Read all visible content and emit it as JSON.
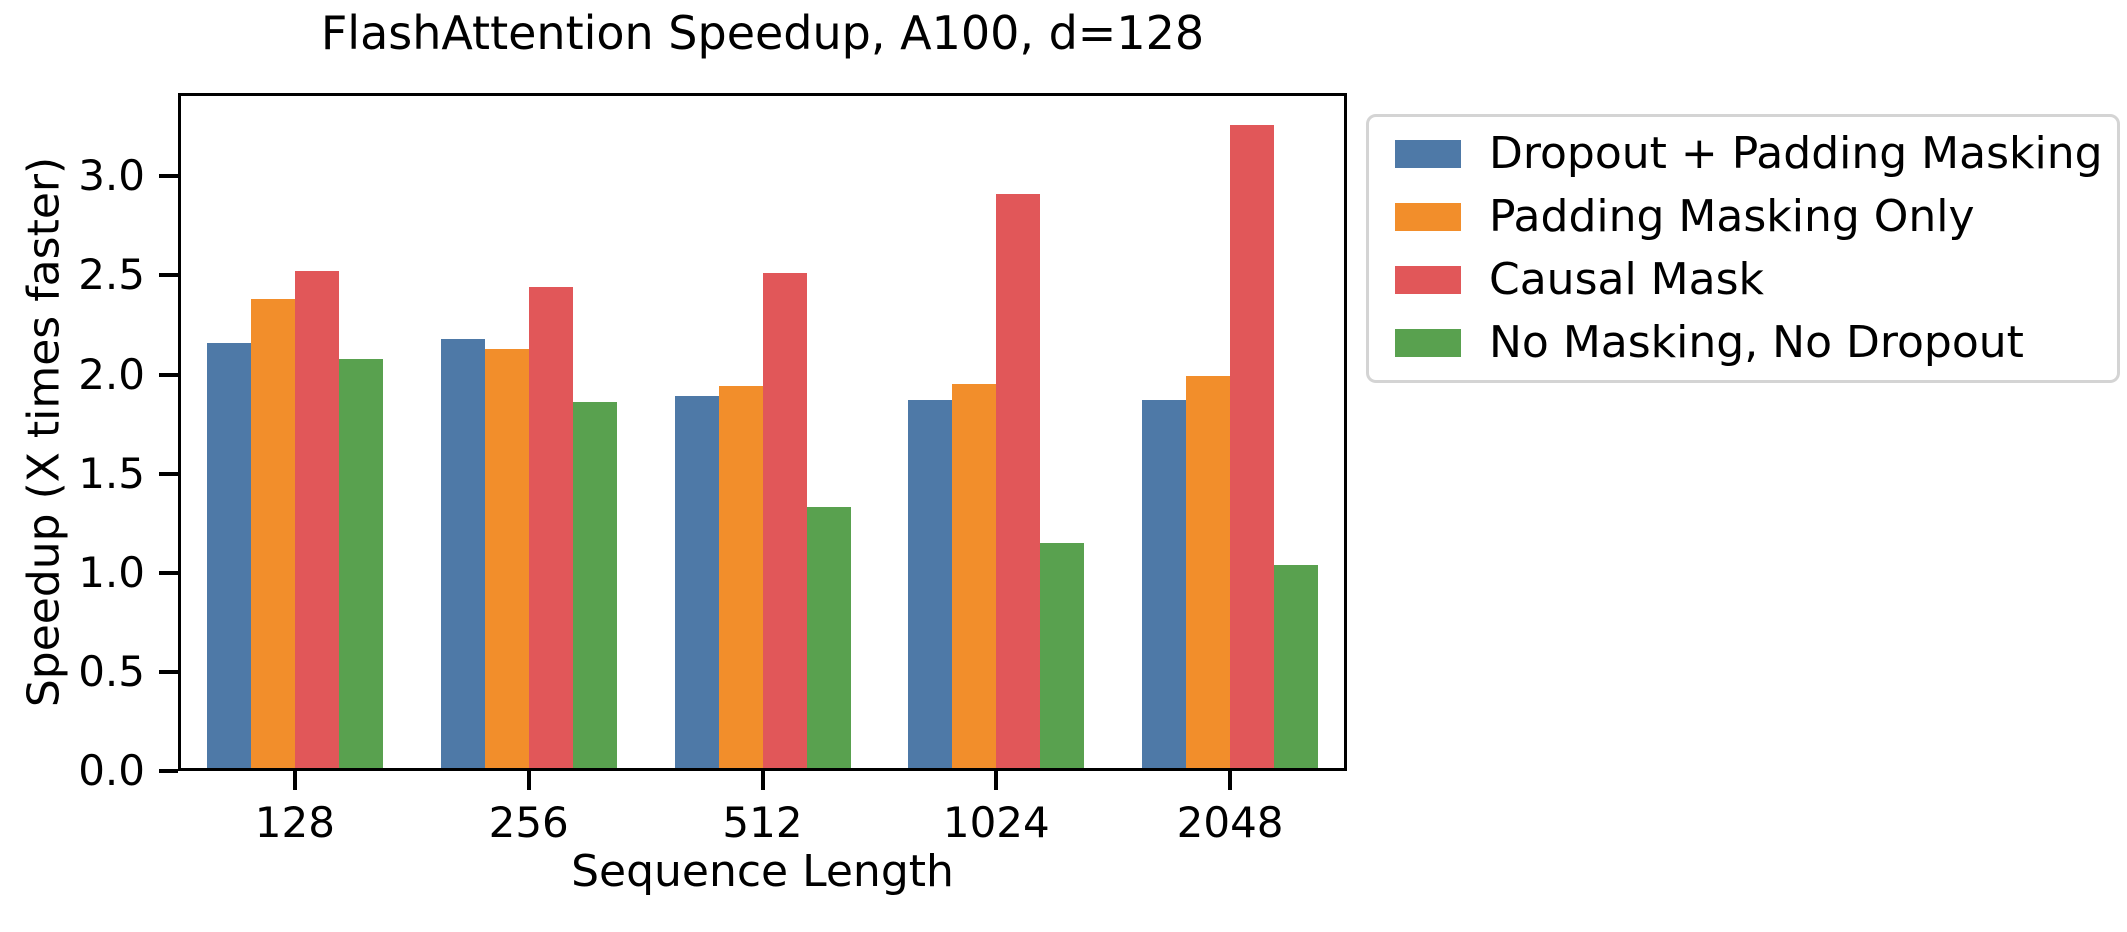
{
  "chart_data": {
    "type": "bar",
    "title": "FlashAttention Speedup, A100, d=128",
    "xlabel": "Sequence Length",
    "ylabel": "Speedup (X times faster)",
    "categories": [
      "128",
      "256",
      "512",
      "1024",
      "2048"
    ],
    "series": [
      {
        "name": "Dropout + Padding Masking",
        "color": "#4e79a7",
        "values": [
          2.16,
          2.18,
          1.89,
          1.87,
          1.87
        ]
      },
      {
        "name": "Padding Masking Only",
        "color": "#f28e2b",
        "values": [
          2.38,
          2.13,
          1.94,
          1.95,
          1.99
        ]
      },
      {
        "name": "Causal Mask",
        "color": "#e15759",
        "values": [
          2.52,
          2.44,
          2.51,
          2.91,
          3.26
        ]
      },
      {
        "name": "No Masking, No Dropout",
        "color": "#59a14f",
        "values": [
          2.08,
          1.86,
          1.33,
          1.15,
          1.04
        ]
      }
    ],
    "ylim": [
      0,
      3.42
    ],
    "ytick_labels": [
      "0.0",
      "0.5",
      "1.0",
      "1.5",
      "2.0",
      "2.5",
      "3.0"
    ],
    "grid": false,
    "legend_position": "outside-right",
    "colors": {
      "axis": "#000000",
      "text": "#000000",
      "legend_border": "#d4d4d4",
      "background": "#ffffff"
    }
  }
}
